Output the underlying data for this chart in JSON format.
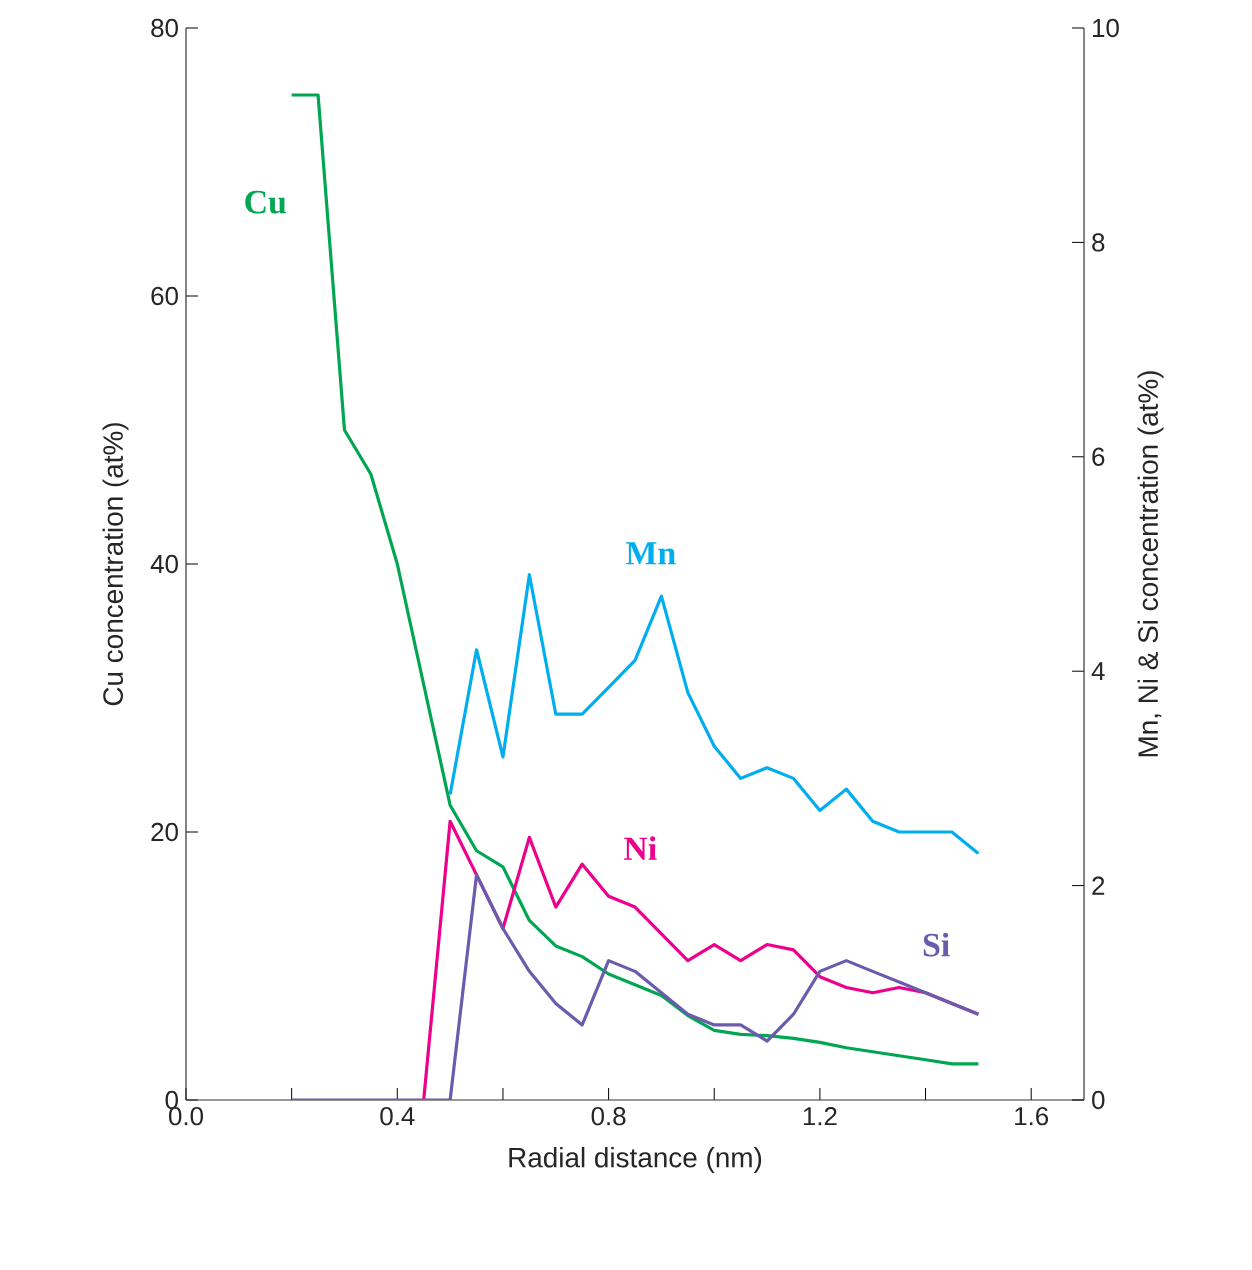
{
  "chart_data": {
    "type": "line",
    "xlabel": "Radial distance (nm)",
    "ylabel": "Cu concentration (at%)",
    "y2label": "Mn, Ni & Si concentration (at%)",
    "x": [
      0.2,
      0.25,
      0.3,
      0.35,
      0.4,
      0.45,
      0.5,
      0.55,
      0.6,
      0.65,
      0.7,
      0.75,
      0.8,
      0.85,
      0.9,
      0.95,
      1.0,
      1.05,
      1.1,
      1.15,
      1.2,
      1.25,
      1.3,
      1.35,
      1.4,
      1.45,
      1.5
    ],
    "series": [
      {
        "name": "Cu",
        "color": "#00a651",
        "values": [
          75,
          75,
          50,
          46.7,
          40,
          31,
          22,
          18.6,
          17.4,
          13.4,
          11.5,
          10.7,
          9.4,
          8.6,
          7.8,
          6.3,
          5.2,
          4.9,
          4.8,
          4.6,
          4.3,
          3.9,
          3.6,
          3.3,
          3.0,
          2.7,
          2.7
        ]
      },
      {
        "name": "Mn",
        "color": "#00aeef",
        "axis": "y2",
        "values": [
          null,
          null,
          null,
          null,
          null,
          null,
          2.85,
          4.2,
          3.2,
          4.9,
          3.6,
          3.6,
          3.85,
          4.1,
          4.7,
          3.8,
          3.3,
          3.0,
          3.1,
          3.0,
          2.7,
          2.9,
          2.6,
          2.5,
          2.5,
          2.5,
          2.3
        ]
      },
      {
        "name": "Ni",
        "color": "#ec008c",
        "axis": "y2",
        "values": [
          null,
          null,
          null,
          null,
          null,
          0,
          2.6,
          2.1,
          1.6,
          2.45,
          1.8,
          2.2,
          1.9,
          1.8,
          1.55,
          1.3,
          1.45,
          1.3,
          1.45,
          1.4,
          1.15,
          1.05,
          1.0,
          1.05,
          1.0,
          0.9,
          0.8
        ]
      },
      {
        "name": "Si",
        "color": "#6a5bad",
        "axis": "y2",
        "values": [
          0,
          0,
          0,
          0,
          0,
          0,
          0,
          2.1,
          1.6,
          1.2,
          0.9,
          0.7,
          1.3,
          1.2,
          1.0,
          0.8,
          0.7,
          0.7,
          0.55,
          0.8,
          1.2,
          1.3,
          1.2,
          1.1,
          1.0,
          0.9,
          0.8
        ]
      }
    ],
    "xlim": [
      0,
      1.7
    ],
    "xticks": [
      {
        "value": 0,
        "label": "0.0"
      },
      {
        "value": 0.2,
        "label": null
      },
      {
        "value": 0.4,
        "label": "0.4"
      },
      {
        "value": 0.6,
        "label": null
      },
      {
        "value": 0.8,
        "label": "0.8"
      },
      {
        "value": 1.0,
        "label": null
      },
      {
        "value": 1.2,
        "label": "1.2"
      },
      {
        "value": 1.4,
        "label": null
      },
      {
        "value": 1.6,
        "label": "1.6"
      }
    ],
    "ylim": [
      0,
      80
    ],
    "yticks": [
      0,
      20,
      40,
      60,
      80
    ],
    "y2lim": [
      0,
      10
    ],
    "y2ticks": [
      0,
      2,
      4,
      6,
      8,
      10
    ]
  }
}
